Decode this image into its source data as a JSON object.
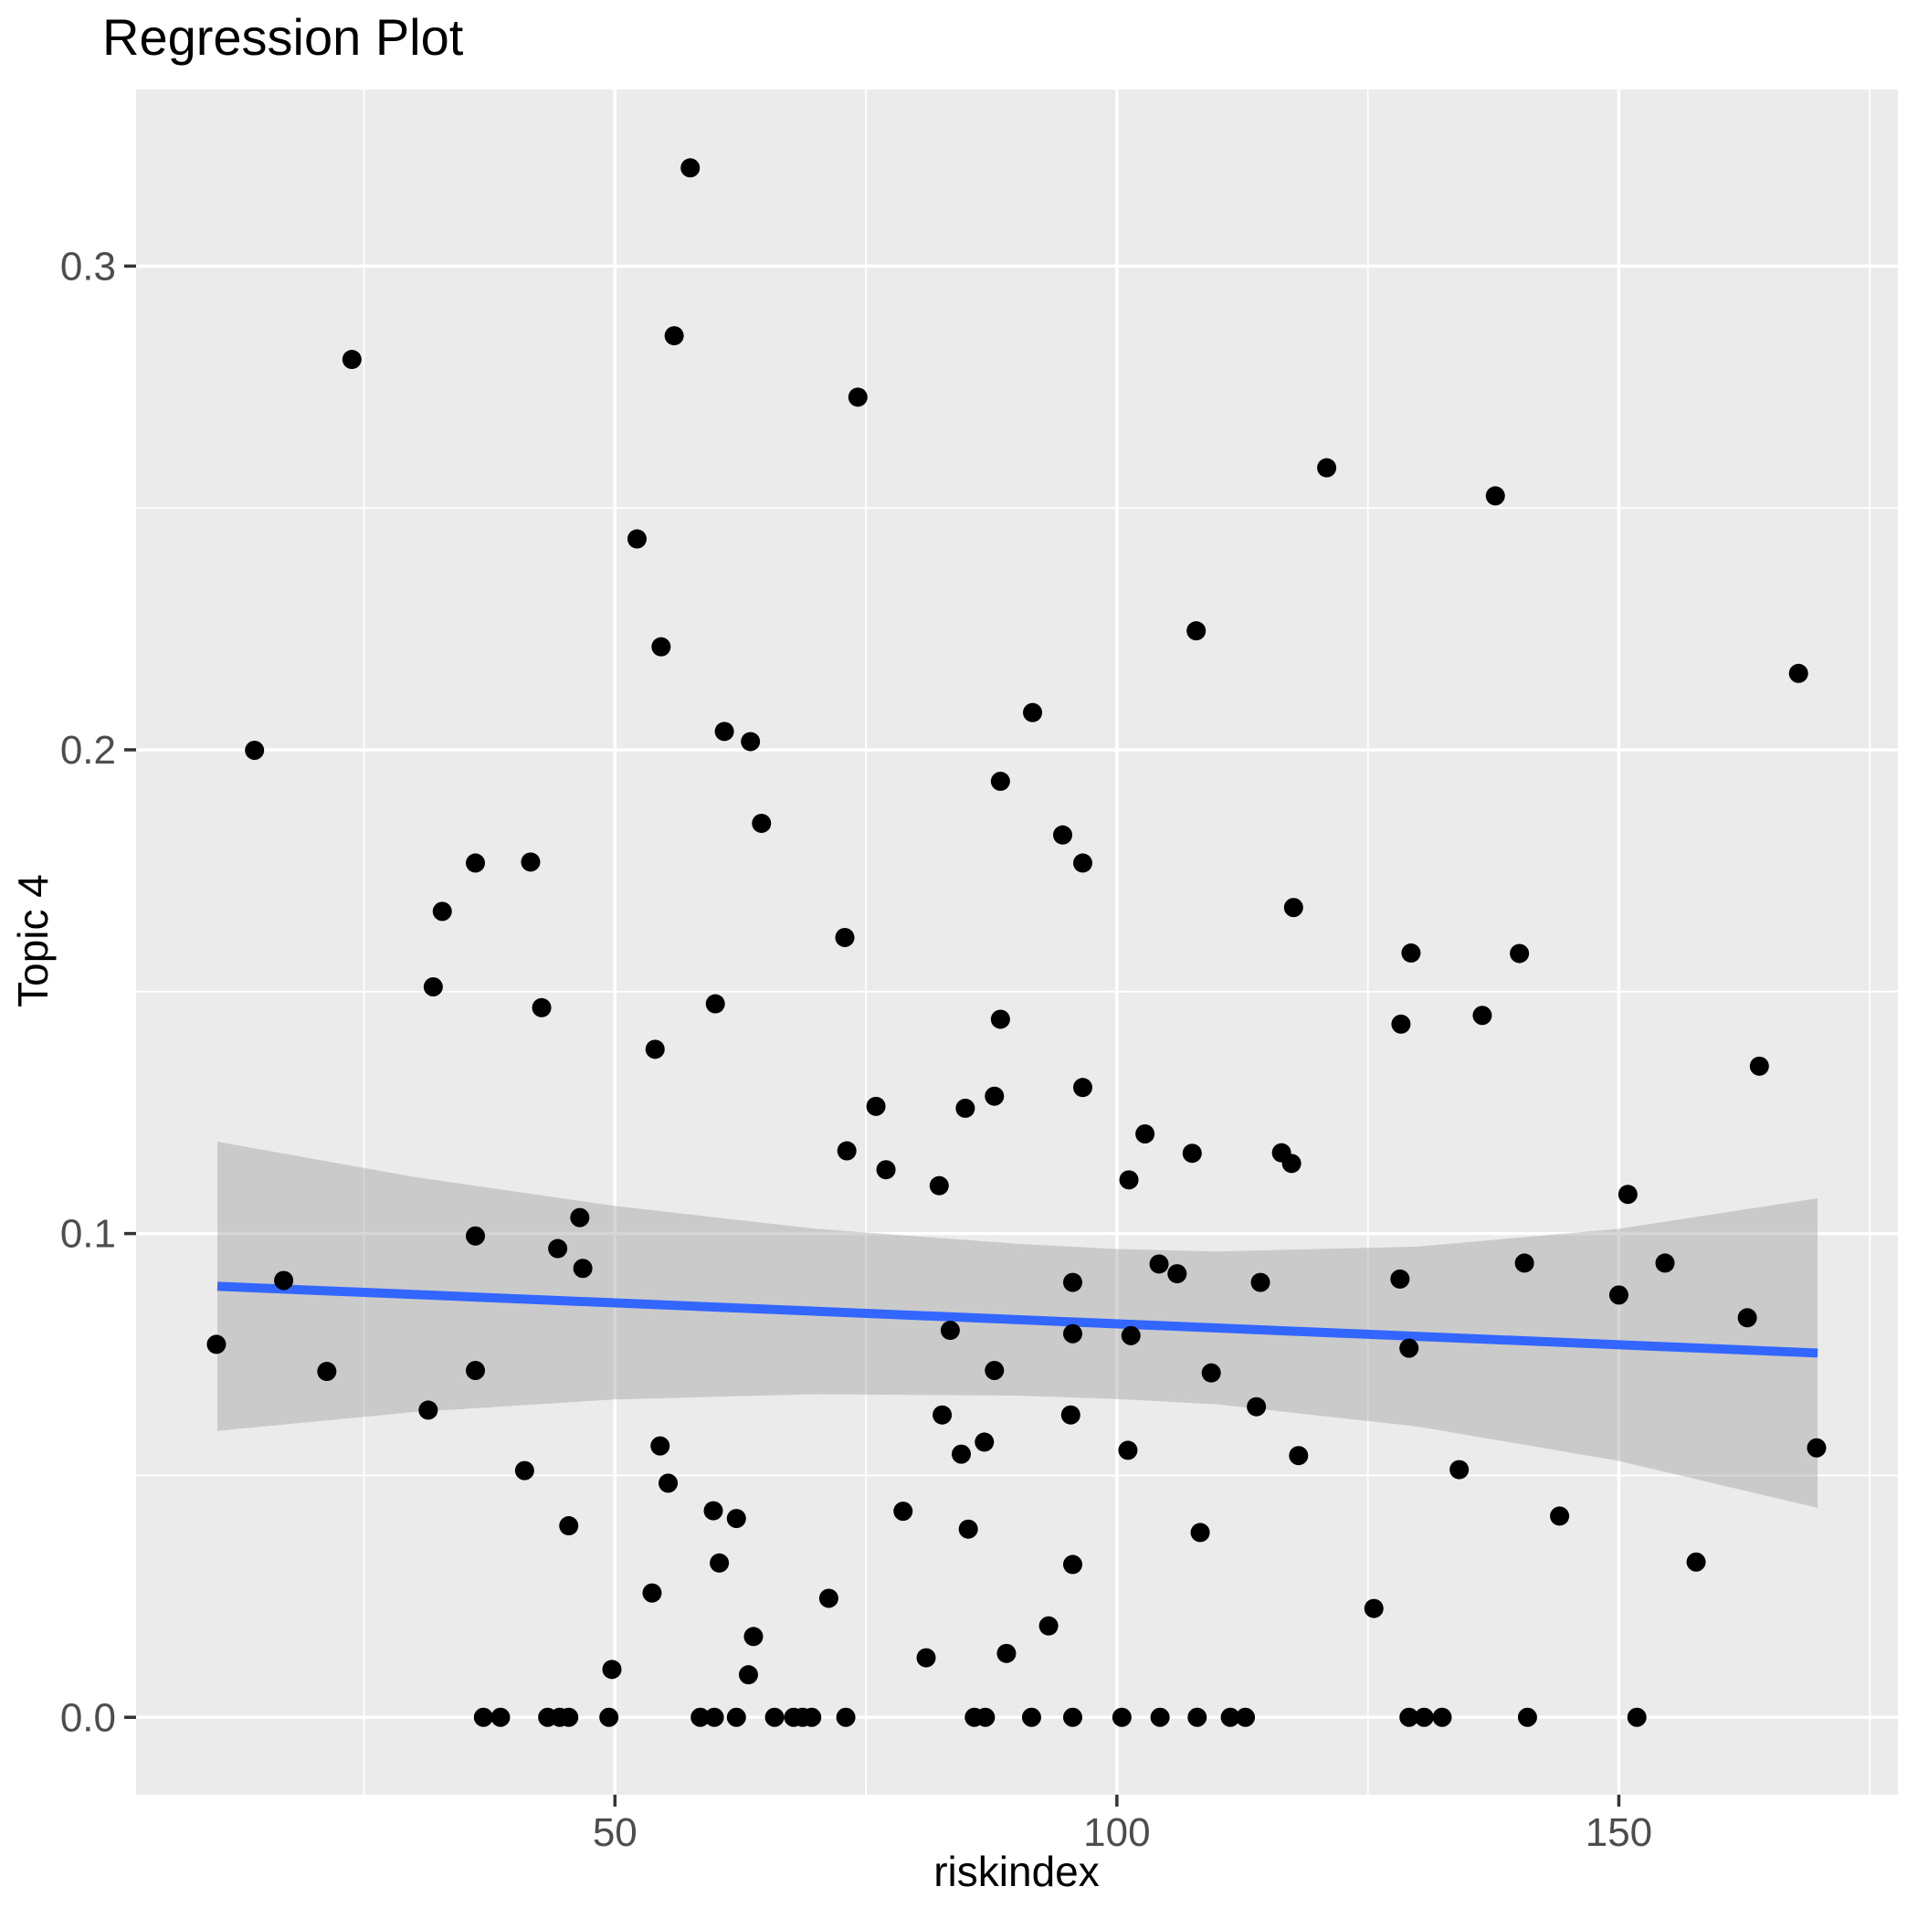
{
  "chart_data": {
    "type": "scatter",
    "title": "Regression Plot",
    "xlabel": "riskindex",
    "ylabel": "Topic 4",
    "legend": "none",
    "grid": "on",
    "xlim": [
      2.3,
      177.8
    ],
    "ylim": [
      -0.016,
      0.3365
    ],
    "x_ticks": [
      50,
      100,
      150
    ],
    "x_tick_labels": [
      "50",
      "100",
      "150"
    ],
    "x_minor_ticks": [
      25,
      75,
      125,
      175
    ],
    "y_ticks": [
      0.0,
      0.1,
      0.2,
      0.3
    ],
    "y_tick_labels": [
      "0.0",
      "0.1",
      "0.2",
      "0.3"
    ],
    "y_minor_ticks": [
      0.05,
      0.15,
      0.25
    ],
    "points": [
      [
        57.5,
        0.3203
      ],
      [
        23.8,
        0.2807
      ],
      [
        55.9,
        0.2856
      ],
      [
        74.2,
        0.2729
      ],
      [
        52.2,
        0.2436
      ],
      [
        54.6,
        0.2213
      ],
      [
        120.9,
        0.2583
      ],
      [
        137.7,
        0.2525
      ],
      [
        107.9,
        0.2246
      ],
      [
        167.9,
        0.2158
      ],
      [
        14.1,
        0.1999
      ],
      [
        60.9,
        0.2038
      ],
      [
        63.5,
        0.2017
      ],
      [
        91.6,
        0.2077
      ],
      [
        88.4,
        0.1935
      ],
      [
        64.6,
        0.1848
      ],
      [
        36.1,
        0.1766
      ],
      [
        41.6,
        0.1768
      ],
      [
        32.8,
        0.1666
      ],
      [
        72.9,
        0.1612
      ],
      [
        31.9,
        0.151
      ],
      [
        42.7,
        0.1467
      ],
      [
        60.0,
        0.1475
      ],
      [
        88.4,
        0.1443
      ],
      [
        54.0,
        0.1381
      ],
      [
        76.0,
        0.1263
      ],
      [
        84.9,
        0.1259
      ],
      [
        87.8,
        0.1284
      ],
      [
        73.1,
        0.1171
      ],
      [
        77.0,
        0.1132
      ],
      [
        82.3,
        0.1099
      ],
      [
        46.5,
        0.1033
      ],
      [
        36.1,
        0.0995
      ],
      [
        44.3,
        0.0969
      ],
      [
        94.6,
        0.1824
      ],
      [
        96.6,
        0.1766
      ],
      [
        117.6,
        0.1674
      ],
      [
        129.3,
        0.158
      ],
      [
        140.1,
        0.1579
      ],
      [
        136.4,
        0.1451
      ],
      [
        128.3,
        0.1433
      ],
      [
        164.0,
        0.1346
      ],
      [
        96.6,
        0.1302
      ],
      [
        102.8,
        0.1206
      ],
      [
        107.5,
        0.1166
      ],
      [
        116.4,
        0.1167
      ],
      [
        117.4,
        0.1145
      ],
      [
        101.2,
        0.1111
      ],
      [
        150.9,
        0.1081
      ],
      [
        17.0,
        0.0903
      ],
      [
        46.8,
        0.0928
      ],
      [
        10.3,
        0.0771
      ],
      [
        21.3,
        0.0715
      ],
      [
        36.1,
        0.0717
      ],
      [
        31.4,
        0.0635
      ],
      [
        83.4,
        0.08
      ],
      [
        87.8,
        0.0717
      ],
      [
        82.6,
        0.0625
      ],
      [
        54.5,
        0.0561
      ],
      [
        86.8,
        0.0569
      ],
      [
        84.5,
        0.0544
      ],
      [
        41.0,
        0.051
      ],
      [
        55.3,
        0.0484
      ],
      [
        59.8,
        0.0427
      ],
      [
        62.1,
        0.0411
      ],
      [
        45.4,
        0.0396
      ],
      [
        78.7,
        0.0426
      ],
      [
        85.2,
        0.0389
      ],
      [
        60.4,
        0.0319
      ],
      [
        53.7,
        0.0257
      ],
      [
        71.3,
        0.0246
      ],
      [
        63.8,
        0.0167
      ],
      [
        81.0,
        0.0123
      ],
      [
        49.7,
        0.0099
      ],
      [
        63.3,
        0.0088
      ],
      [
        89.0,
        0.0132
      ],
      [
        93.2,
        0.0189
      ],
      [
        95.6,
        0.0899
      ],
      [
        104.2,
        0.0937
      ],
      [
        106.0,
        0.0917
      ],
      [
        114.3,
        0.0899
      ],
      [
        128.2,
        0.0906
      ],
      [
        140.6,
        0.0939
      ],
      [
        154.6,
        0.0939
      ],
      [
        150.0,
        0.0873
      ],
      [
        162.8,
        0.0826
      ],
      [
        95.6,
        0.0793
      ],
      [
        101.4,
        0.0789
      ],
      [
        129.1,
        0.0763
      ],
      [
        109.4,
        0.0712
      ],
      [
        113.9,
        0.0642
      ],
      [
        95.4,
        0.0625
      ],
      [
        101.1,
        0.0552
      ],
      [
        118.1,
        0.0541
      ],
      [
        134.1,
        0.0512
      ],
      [
        169.7,
        0.0557
      ],
      [
        144.1,
        0.0416
      ],
      [
        108.3,
        0.0382
      ],
      [
        95.6,
        0.0316
      ],
      [
        157.7,
        0.0321
      ],
      [
        125.6,
        0.0225
      ],
      [
        36.9,
        0
      ],
      [
        38.6,
        0
      ],
      [
        43.3,
        0
      ],
      [
        44.5,
        0
      ],
      [
        45.4,
        0
      ],
      [
        49.4,
        0
      ],
      [
        58.5,
        0
      ],
      [
        59.9,
        0
      ],
      [
        62.1,
        0
      ],
      [
        65.9,
        0
      ],
      [
        67.8,
        0
      ],
      [
        68.7,
        0
      ],
      [
        69.6,
        0
      ],
      [
        73.0,
        0
      ],
      [
        85.8,
        0
      ],
      [
        86.9,
        0
      ],
      [
        91.5,
        0
      ],
      [
        95.6,
        0
      ],
      [
        100.5,
        0
      ],
      [
        104.3,
        0
      ],
      [
        108.0,
        0
      ],
      [
        111.3,
        0
      ],
      [
        112.8,
        0
      ],
      [
        129.1,
        0
      ],
      [
        130.6,
        0
      ],
      [
        132.4,
        0
      ],
      [
        140.9,
        0
      ],
      [
        151.8,
        0
      ]
    ],
    "regression_line": {
      "x": [
        10.4,
        169.8
      ],
      "y": [
        0.0891,
        0.0753
      ],
      "color": "#3366FF"
    },
    "confidence_band": {
      "x": [
        10.4,
        30,
        50,
        70,
        90,
        100,
        110,
        130,
        150,
        169.8
      ],
      "upper": [
        0.119,
        0.1117,
        0.1057,
        0.101,
        0.0979,
        0.0968,
        0.0963,
        0.0973,
        0.101,
        0.1073
      ],
      "lower": [
        0.0592,
        0.0631,
        0.0657,
        0.0668,
        0.0665,
        0.0658,
        0.0647,
        0.0601,
        0.053,
        0.0433
      ]
    },
    "colors": {
      "panel_bg": "#EBEBEB",
      "grid": "#FFFFFF",
      "point": "#000000",
      "band": "rgba(153,153,153,0.4)",
      "axis_text": "#4D4D4D",
      "tick_mark": "#333333",
      "title": "#000000"
    }
  }
}
